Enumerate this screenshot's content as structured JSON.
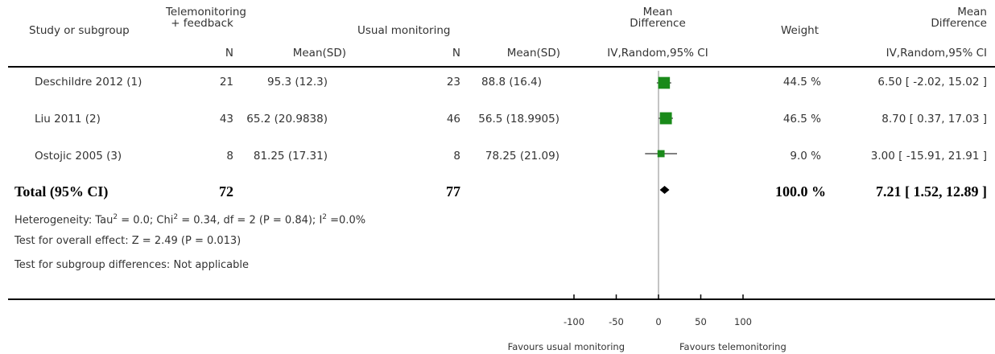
{
  "headers": {
    "study": "Study or subgroup",
    "exp_group_line1": "Telemonitoring",
    "exp_group_line2": "+ feedback",
    "ctrl_group": "Usual monitoring",
    "md_line1": "Mean",
    "md_line2": "Difference",
    "weight": "Weight",
    "md2_line1": "Mean",
    "md2_line2": "Difference",
    "n_exp": "N",
    "mean_exp": "Mean(SD)",
    "n_ctrl": "N",
    "mean_ctrl": "Mean(SD)",
    "method_plot": "IV,Random,95% CI",
    "method_text": "IV,Random,95% CI"
  },
  "studies": [
    {
      "name": "Deschildre 2012 (1)",
      "n_exp": "21",
      "mean_exp": "95.3 (12.3)",
      "n_ctrl": "23",
      "mean_ctrl": "88.8 (16.4)",
      "weight": "44.5 %",
      "ci_text": "6.50 [ -2.02, 15.02 ]"
    },
    {
      "name": "Liu 2011 (2)",
      "n_exp": "43",
      "mean_exp": "65.2 (20.9838)",
      "n_ctrl": "46",
      "mean_ctrl": "56.5 (18.9905)",
      "weight": "46.5 %",
      "ci_text": "8.70 [ 0.37, 17.03 ]"
    },
    {
      "name": "Ostojic 2005 (3)",
      "n_exp": "8",
      "mean_exp": "81.25 (17.31)",
      "n_ctrl": "8",
      "mean_ctrl": "78.25 (21.09)",
      "weight": "9.0 %",
      "ci_text": "3.00 [ -15.91, 21.91 ]"
    }
  ],
  "total": {
    "label": "Total (95% CI)",
    "n_exp": "72",
    "n_ctrl": "77",
    "weight": "100.0 %",
    "ci_text": "7.21 [ 1.52, 12.89 ]"
  },
  "footnotes": {
    "heterogeneity_prefix": "Heterogeneity: Tau",
    "heterogeneity_sup1": "2",
    "heterogeneity_mid": " = 0.0; Chi",
    "heterogeneity_sup2": "2",
    "heterogeneity_mid2": " = 0.34, df = 2 (P = 0.84); I",
    "heterogeneity_sup3": "2",
    "heterogeneity_end": " =0.0%",
    "overall_effect": "Test for overall effect: Z = 2.49 (P = 0.013)",
    "subgroup_diff": "Test for subgroup differences: Not applicable"
  },
  "axis": {
    "ticks": [
      "-100",
      "-50",
      "0",
      "50",
      "100"
    ],
    "favours_left": "Favours usual monitoring",
    "favours_right": "Favours telemonitoring"
  },
  "colors": {
    "square": "#1a8a1a",
    "diamond": "#000000",
    "text": "#333333"
  },
  "chart_data": {
    "type": "scatter",
    "xlim": [
      -100,
      100
    ],
    "x_ticks": [
      -100,
      -50,
      0,
      50,
      100
    ],
    "points": [
      {
        "study": "Deschildre 2012 (1)",
        "estimate": 6.5,
        "ci_low": -2.02,
        "ci_high": 15.02,
        "weight": 44.5
      },
      {
        "study": "Liu 2011 (2)",
        "estimate": 8.7,
        "ci_low": 0.37,
        "ci_high": 17.03,
        "weight": 46.5
      },
      {
        "study": "Ostojic 2005 (3)",
        "estimate": 3.0,
        "ci_low": -15.91,
        "ci_high": 21.91,
        "weight": 9.0
      }
    ],
    "pooled": {
      "estimate": 7.21,
      "ci_low": 1.52,
      "ci_high": 12.89
    }
  }
}
